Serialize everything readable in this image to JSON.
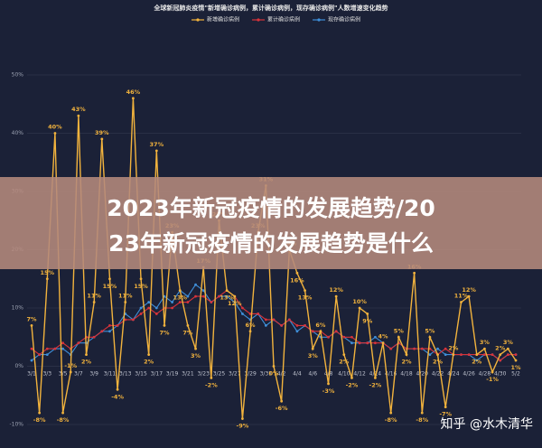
{
  "chart_data": {
    "type": "line",
    "title": "全球新冠肺炎疫情\"新增确诊病例，累计确诊病例，现存确诊病例\"人数增速变化趋势",
    "categories": [
      "3/1",
      null,
      "3/3",
      null,
      "3/5",
      null,
      "3/7",
      null,
      "3/9",
      null,
      "3/11",
      null,
      "3/13",
      null,
      "3/15",
      null,
      "3/17",
      null,
      "3/19",
      null,
      "3/21",
      null,
      "3/23",
      null,
      "3/25",
      null,
      "3/27",
      null,
      "3/29",
      null,
      "3/31",
      null,
      "4/2",
      null,
      "4/4",
      null,
      "4/6",
      null,
      "4/8",
      null,
      "4/10",
      null,
      "4/12",
      null,
      "4/14",
      null,
      "4/16",
      null,
      "4/18",
      null,
      "4/20",
      null,
      "4/22",
      null,
      "4/24",
      null,
      "4/26",
      null,
      "4/28",
      null,
      "4/30",
      null,
      "5/2"
    ],
    "series": [
      {
        "name": "新增确诊病例",
        "color": "#f2b33d",
        "values": [
          7,
          -8,
          15,
          40,
          -8,
          -1,
          43,
          2,
          11,
          39,
          15,
          -4,
          11,
          46,
          15,
          2,
          37,
          7,
          23,
          13,
          7,
          3,
          17,
          -2,
          25,
          13,
          12,
          -9,
          6,
          23,
          31,
          0,
          -6,
          20,
          16,
          13,
          3,
          6,
          -3,
          12,
          2,
          -2,
          10,
          9,
          -2,
          4,
          -8,
          5,
          2,
          16,
          -8,
          5,
          2,
          -7,
          2,
          11,
          12,
          2,
          3,
          -1,
          2,
          3,
          1
        ],
        "value_labels": [
          "7%",
          "-8%",
          "15%",
          "40%",
          "-8%",
          "-1%",
          "43%",
          "2%",
          "11%",
          "39%",
          "15%",
          "-4%",
          "11%",
          "46%",
          "15%",
          "2%",
          "37%",
          "7%",
          "23%",
          "13%",
          "7%",
          "3%",
          "17%",
          "-2%",
          "25%",
          "13%",
          "12%",
          "-9%",
          "6%",
          "23%",
          "31%",
          "0%",
          "-6%",
          "20%",
          "16%",
          "13%",
          "3%",
          "6%",
          "-3%",
          "12%",
          "2%",
          "-2%",
          "10%",
          "9%",
          "-2%",
          "4%",
          "-8%",
          "5%",
          "2%",
          "16%",
          "-8%",
          "5%",
          "2%",
          "-7%",
          "2%",
          "11%",
          "12%",
          "2%",
          "3%",
          "-1%",
          "2%",
          "3%",
          "1%"
        ]
      },
      {
        "name": "累计确诊病例",
        "color": "#d8333a",
        "values": [
          3,
          2,
          3,
          3,
          4,
          3,
          4,
          5,
          5,
          6,
          7,
          7,
          8,
          8,
          9,
          10,
          9,
          10,
          10,
          11,
          11,
          12,
          12,
          11,
          12,
          13,
          12,
          10,
          9,
          9,
          8,
          8,
          7,
          8,
          7,
          7,
          6,
          6,
          5,
          6,
          5,
          5,
          4,
          4,
          4,
          4,
          3,
          4,
          3,
          3,
          3,
          3,
          2,
          3,
          2,
          2,
          2,
          2,
          2,
          2,
          1,
          2,
          2
        ]
      },
      {
        "name": "现存确诊病例",
        "color": "#3f8fd9",
        "values": [
          1,
          2,
          2,
          3,
          3,
          2,
          4,
          4,
          5,
          6,
          6,
          7,
          9,
          8,
          10,
          11,
          10,
          12,
          11,
          13,
          12,
          14,
          13,
          11,
          12,
          12,
          11,
          9,
          8,
          9,
          7,
          8,
          7,
          8,
          6,
          7,
          6,
          5,
          5,
          6,
          5,
          4,
          4,
          4,
          5,
          4,
          3,
          4,
          3,
          3,
          3,
          2,
          3,
          2,
          2,
          2,
          2,
          1,
          2,
          2,
          1,
          2,
          2
        ]
      }
    ],
    "ylim": [
      -10,
      50
    ],
    "yticks": [
      {
        "value": -10,
        "label": "-10%"
      },
      {
        "value": 0,
        "label": "0%"
      },
      {
        "value": 10,
        "label": "10%"
      },
      {
        "value": 20,
        "label": "20%"
      },
      {
        "value": 30,
        "label": "30%"
      },
      {
        "value": 40,
        "label": "40%"
      },
      {
        "value": 50,
        "label": "50%"
      }
    ],
    "grid": true
  },
  "banner": {
    "lines": [
      "2023年新冠疫情的发展趋势/20",
      "23年新冠疫情的发展趋势是什么"
    ]
  },
  "watermark": "知乎 @水木清华"
}
